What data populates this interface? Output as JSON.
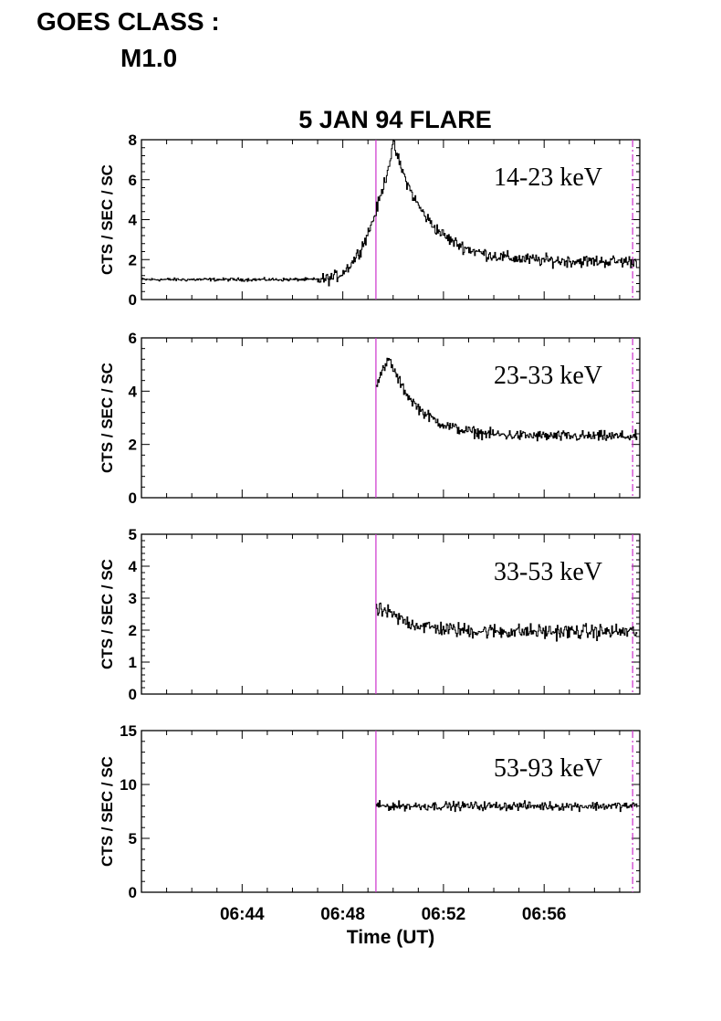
{
  "header": {
    "goes_line1": "GOES CLASS :",
    "goes_line2": "M1.0"
  },
  "colors": {
    "marker": "#cc33cc",
    "trace": "#000000",
    "axis": "#000000"
  },
  "chart_data": [
    {
      "type": "line",
      "title": "5 JAN 94 FLARE",
      "label": "14-23 keV",
      "ylabel": "CTS / SEC / SC",
      "xlim": [
        "06:40:00",
        "06:59:48"
      ],
      "ylim": [
        0,
        8
      ],
      "yticks": [
        0,
        2,
        4,
        6,
        8
      ],
      "start": "06:40:00",
      "markers": [
        {
          "time": "06:49:19",
          "style": "solid"
        },
        {
          "time": "06:59:31",
          "style": "dashdot"
        }
      ],
      "shape": {
        "baseline": 1.0,
        "rise_start": "06:47:00",
        "peak_time": "06:50:00",
        "peak": 7.8,
        "decay_to": 1.9,
        "noise": 0.45
      }
    },
    {
      "type": "line",
      "label": "23-33 keV",
      "ylabel": "CTS / SEC / SC",
      "xlim": [
        "06:40:00",
        "06:59:48"
      ],
      "ylim": [
        0,
        6
      ],
      "yticks": [
        0,
        2,
        4,
        6
      ],
      "start": "06:49:19",
      "markers": [
        {
          "time": "06:49:19",
          "style": "solid"
        },
        {
          "time": "06:59:31",
          "style": "dashdot"
        }
      ],
      "shape": {
        "begin_level": 4.3,
        "peak_time": "06:49:50",
        "peak": 5.2,
        "decay_to": 2.3,
        "noise": 0.3
      }
    },
    {
      "type": "line",
      "label": "33-53 keV",
      "ylabel": "CTS / SEC / SC",
      "xlim": [
        "06:40:00",
        "06:59:48"
      ],
      "ylim": [
        0,
        5
      ],
      "yticks": [
        0,
        1,
        2,
        3,
        4,
        5
      ],
      "start": "06:49:19",
      "markers": [
        {
          "time": "06:49:19",
          "style": "solid"
        },
        {
          "time": "06:59:31",
          "style": "dashdot"
        }
      ],
      "shape": {
        "begin_level": 2.6,
        "peak_time": "06:49:40",
        "peak": 2.6,
        "decay_to": 1.95,
        "noise": 0.35
      }
    },
    {
      "type": "line",
      "label": "53-93 keV",
      "ylabel": "CTS / SEC / SC",
      "xlim": [
        "06:40:00",
        "06:59:48"
      ],
      "ylim": [
        0,
        15
      ],
      "yticks": [
        0,
        5,
        10,
        15
      ],
      "xticks": [
        "06:44",
        "06:48",
        "06:52",
        "06:56"
      ],
      "xlabel": "Time (UT)",
      "start": "06:49:19",
      "markers": [
        {
          "time": "06:49:19",
          "style": "solid"
        },
        {
          "time": "06:59:31",
          "style": "dashdot"
        }
      ],
      "shape": {
        "begin_level": 8.0,
        "peak_time": "06:49:30",
        "peak": 8.0,
        "decay_to": 8.0,
        "noise": 0.6
      }
    }
  ]
}
